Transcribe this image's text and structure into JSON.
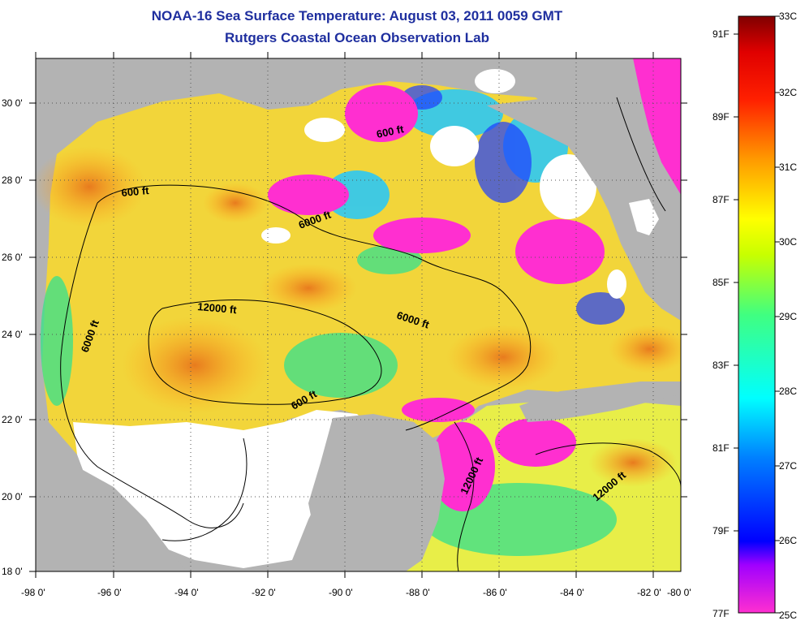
{
  "title_line1": "NOAA-16 Sea Surface Temperature:  August 03, 2011 0059 GMT",
  "title_line2": "Rutgers Coastal Ocean Observation Lab",
  "lon_labels": [
    "-98 0'",
    "-96 0'",
    "-94 0'",
    "-92 0'",
    "-90 0'",
    "-88 0'",
    "-86 0'",
    "-84 0'",
    "-82 0'",
    "-80 0'"
  ],
  "lat_labels": [
    "30 0'",
    "28 0'",
    "26 0'",
    "24 0'",
    "22 0'",
    "20 0'",
    "18 0'"
  ],
  "contour_labels": [
    "600 ft",
    "600 ft",
    "6000 ft",
    "12000 ft",
    "6000 ft",
    "6000 ft",
    "600 ft",
    "12000 ft",
    "12000 ft"
  ],
  "colorbar": {
    "fahrenheit": [
      "91F",
      "89F",
      "87F",
      "85F",
      "83F",
      "81F",
      "79F",
      "77F"
    ],
    "celsius": [
      "33C",
      "32C",
      "31C",
      "30C",
      "29C",
      "28C",
      "27C",
      "26C",
      "25C"
    ]
  },
  "colors": {
    "title": "#1f2f9f",
    "land": "#b3b3b3",
    "no_data": "#ffffff"
  }
}
